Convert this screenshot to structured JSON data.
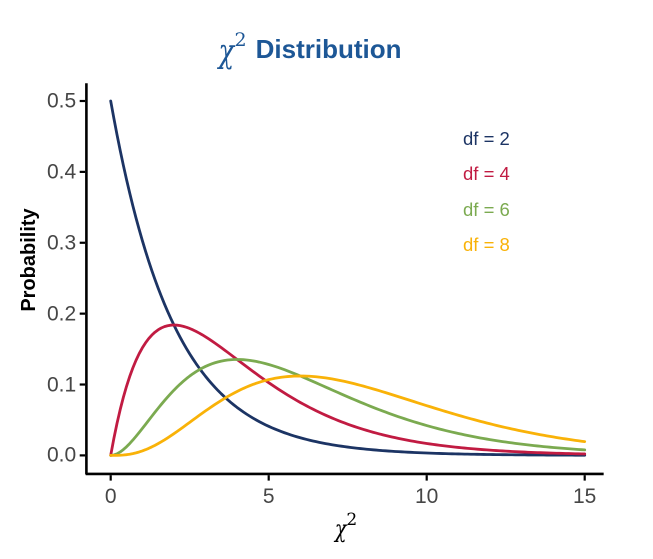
{
  "figure": {
    "title": {
      "symbol": "χ",
      "exponent": "2",
      "text": "Distribution",
      "color": "#1D5796"
    },
    "y_axis_title": "Probability",
    "x_axis_title": {
      "symbol": "χ",
      "exponent": "2"
    },
    "background": "#FFFFFF",
    "axis_color": "#000000",
    "tick_label_color": "#464646"
  },
  "legend": {
    "items": [
      {
        "label": "df = 2",
        "color": "#1C3464"
      },
      {
        "label": "df = 4",
        "color": "#C11B42"
      },
      {
        "label": "df = 6",
        "color": "#7BAA50"
      },
      {
        "label": "df = 8",
        "color": "#F9B208"
      }
    ]
  },
  "chart_data": {
    "type": "line",
    "title": "χ² Distribution",
    "xlabel": "χ²",
    "ylabel": "Probability",
    "xlim": [
      0,
      15
    ],
    "ylim": [
      0,
      0.5
    ],
    "grid": false,
    "legend_position": "inside-top-right",
    "xticks": {
      "values": [
        0,
        5,
        10,
        15
      ],
      "labels": [
        "0",
        "5",
        "10",
        "15"
      ]
    },
    "yticks": {
      "values": [
        0.0,
        0.1,
        0.2,
        0.3,
        0.4,
        0.5
      ],
      "labels": [
        "0.0",
        "0.1",
        "0.2",
        "0.3",
        "0.4",
        "0.5"
      ]
    },
    "x_start": 0.0,
    "x_step": 0.1,
    "series": [
      {
        "name": "df = 2",
        "df": 2,
        "color": "#1C3464",
        "y": [
          0.5,
          0.47561,
          0.45242,
          0.43035,
          0.40937,
          0.3894,
          0.37041,
          0.35234,
          0.33516,
          0.31881,
          0.30327,
          0.28847,
          0.27441,
          0.26102,
          0.24829,
          0.23618,
          0.22466,
          0.21371,
          0.20328,
          0.19337,
          0.18394,
          0.17497,
          0.16644,
          0.15832,
          0.1506,
          0.14325,
          0.13627,
          0.12962,
          0.1233,
          0.11729,
          0.11157,
          0.10612,
          0.10095,
          0.09602,
          0.09134,
          0.08689,
          0.08265,
          0.07862,
          0.07478,
          0.07114,
          0.06767,
          0.06437,
          0.06123,
          0.05824,
          0.0554,
          0.0527,
          0.05013,
          0.04768,
          0.04536,
          0.04315,
          0.04104,
          0.03904,
          0.03714,
          0.03533,
          0.0336,
          0.03196,
          0.03041,
          0.02892,
          0.02751,
          0.02617,
          0.02489,
          0.02368,
          0.02252,
          0.02143,
          0.02038,
          0.01939,
          0.01844,
          0.01754,
          0.01669,
          0.01587,
          0.0151,
          0.01436,
          0.01366,
          0.013,
          0.01236,
          0.01176,
          0.01119,
          0.01064,
          0.01012,
          0.00963,
          0.00916,
          0.00871,
          0.00829,
          0.00788,
          0.0075,
          0.00713,
          0.00678,
          0.00645,
          0.00614,
          0.00584,
          0.00555,
          0.00528,
          0.00503,
          0.00478,
          0.00455,
          0.00433,
          0.00411,
          0.00391,
          0.00372,
          0.00354,
          0.00337,
          0.0032,
          0.00305,
          0.0029,
          0.00276,
          0.00262,
          0.0025,
          0.00237,
          0.00226,
          0.00215,
          0.00204,
          0.00194,
          0.00185,
          0.00176,
          0.00167,
          0.00159,
          0.00151,
          0.00144,
          0.00137,
          0.0013,
          0.00124,
          0.00118,
          0.00112,
          0.00107,
          0.00101,
          0.00097,
          0.00092,
          0.00087,
          0.00083,
          0.00079,
          0.00075,
          0.00072,
          0.00068,
          0.00065,
          0.00062,
          0.00059,
          0.00056,
          0.00053,
          0.0005,
          0.00048,
          0.00046,
          0.00043,
          0.00041,
          0.00039,
          0.00037,
          0.00036,
          0.00034,
          0.00032,
          0.00031,
          0.00029,
          0.00028
        ]
      },
      {
        "name": "df = 4",
        "df": 4,
        "color": "#C11B42",
        "y": [
          0.0,
          0.02378,
          0.04524,
          0.06455,
          0.08187,
          0.09735,
          0.11112,
          0.12332,
          0.13406,
          0.14347,
          0.15163,
          0.15866,
          0.16464,
          0.16966,
          0.1738,
          0.17714,
          0.17973,
          0.18165,
          0.18296,
          0.1837,
          0.18394,
          0.18372,
          0.18308,
          0.18207,
          0.18072,
          0.17907,
          0.17715,
          0.17499,
          0.17262,
          0.17006,
          0.16735,
          0.16449,
          0.16152,
          0.15844,
          0.15528,
          0.15205,
          0.14877,
          0.14544,
          0.14209,
          0.13872,
          0.13534,
          0.13195,
          0.12858,
          0.12522,
          0.12188,
          0.11857,
          0.1153,
          0.11206,
          0.10886,
          0.10571,
          0.10261,
          0.09955,
          0.09656,
          0.09361,
          0.09073,
          0.0879,
          0.08513,
          0.08243,
          0.07978,
          0.0772,
          0.07468,
          0.07222,
          0.06983,
          0.06749,
          0.06522,
          0.06301,
          0.06086,
          0.05877,
          0.05673,
          0.05476,
          0.05285,
          0.05099,
          0.04918,
          0.04743,
          0.04574,
          0.0441,
          0.0425,
          0.04096,
          0.03947,
          0.03803,
          0.03663,
          0.03528,
          0.03397,
          0.03271,
          0.03149,
          0.03031,
          0.02917,
          0.02807,
          0.02701,
          0.02598,
          0.025,
          0.02404,
          0.02312,
          0.02223,
          0.02137,
          0.02055,
          0.01975,
          0.01898,
          0.01824,
          0.01753,
          0.01684,
          0.01618,
          0.01555,
          0.01493,
          0.01434,
          0.01377,
          0.01323,
          0.0127,
          0.01219,
          0.01171,
          0.01124,
          0.01079,
          0.01035,
          0.00994,
          0.00954,
          0.00915,
          0.00878,
          0.00842,
          0.00808,
          0.00775,
          0.00744,
          0.00713,
          0.00684,
          0.00656,
          0.00629,
          0.00603,
          0.00578,
          0.00555,
          0.00532,
          0.0051,
          0.00489,
          0.00468,
          0.00449,
          0.0043,
          0.00412,
          0.00395,
          0.00379,
          0.00363,
          0.00348,
          0.00333,
          0.00319,
          0.00306,
          0.00293,
          0.00281,
          0.00269,
          0.00257,
          0.00247,
          0.00236,
          0.00226,
          0.00217,
          0.00207
        ]
      },
      {
        "name": "df = 6",
        "df": 6,
        "color": "#7BAA50",
        "y": [
          0.0,
          0.00059,
          0.00226,
          0.00484,
          0.00819,
          0.01217,
          0.01667,
          0.02158,
          0.02681,
          0.03228,
          0.03791,
          0.04363,
          0.04939,
          0.05514,
          0.06083,
          0.06643,
          0.07189,
          0.0772,
          0.08233,
          0.08726,
          0.09197,
          0.09645,
          0.10069,
          0.10469,
          0.10843,
          0.11192,
          0.11514,
          0.11812,
          0.12083,
          0.1233,
          0.12551,
          0.12748,
          0.12921,
          0.13071,
          0.13199,
          0.13305,
          0.13389,
          0.13454,
          0.13499,
          0.13525,
          0.13534,
          0.13525,
          0.13501,
          0.13461,
          0.13407,
          0.1334,
          0.13259,
          0.13167,
          0.13063,
          0.12949,
          0.12826,
          0.12693,
          0.12552,
          0.12404,
          0.12248,
          0.12086,
          0.11919,
          0.11746,
          0.11569,
          0.11387,
          0.11202,
          0.11014,
          0.10823,
          0.1063,
          0.10435,
          0.10239,
          0.10041,
          0.09843,
          0.09645,
          0.09446,
          0.09248,
          0.0905,
          0.08853,
          0.08657,
          0.08462,
          0.08268,
          0.08076,
          0.07885,
          0.07697,
          0.07511,
          0.07326,
          0.07144,
          0.06965,
          0.06788,
          0.06613,
          0.06441,
          0.06272,
          0.06106,
          0.05942,
          0.05782,
          0.05624,
          0.05469,
          0.05317,
          0.05169,
          0.05023,
          0.0488,
          0.0474,
          0.04604,
          0.0447,
          0.04339,
          0.04211,
          0.04086,
          0.03964,
          0.03845,
          0.03729,
          0.03616,
          0.03505,
          0.03398,
          0.03293,
          0.0319,
          0.03091,
          0.02994,
          0.02899,
          0.02807,
          0.02718,
          0.02631,
          0.02546,
          0.02464,
          0.02384,
          0.02306,
          0.02231,
          0.02158,
          0.02086,
          0.02017,
          0.0195,
          0.01885,
          0.01822,
          0.01761,
          0.01701,
          0.01644,
          0.01588,
          0.01534,
          0.01481,
          0.01431,
          0.01381,
          0.01334,
          0.01288,
          0.01243,
          0.012,
          0.01158,
          0.01117,
          0.01078,
          0.0104,
          0.01003,
          0.00968,
          0.00933,
          0.009,
          0.00868,
          0.00837,
          0.00807,
          0.00778
        ]
      },
      {
        "name": "df = 8",
        "df": 8,
        "color": "#F9B208",
        "y": [
          0.0,
          1e-05,
          8e-05,
          0.00024,
          0.00055,
          0.00101,
          0.00167,
          0.00252,
          0.00358,
          0.00484,
          0.00632,
          0.008,
          0.00988,
          0.01195,
          0.01419,
          0.01661,
          0.01917,
          0.02187,
          0.0247,
          0.02763,
          0.03066,
          0.03376,
          0.03692,
          0.04013,
          0.04337,
          0.04663,
          0.0499,
          0.05315,
          0.05639,
          0.05959,
          0.06276,
          0.06587,
          0.06891,
          0.07189,
          0.07479,
          0.07761,
          0.08034,
          0.08296,
          0.08549,
          0.08791,
          0.09022,
          0.09242,
          0.09451,
          0.09647,
          0.09832,
          0.10005,
          0.10165,
          0.10314,
          0.10451,
          0.10575,
          0.10688,
          0.10789,
          0.10879,
          0.10957,
          0.11023,
          0.11079,
          0.11124,
          0.11159,
          0.11183,
          0.11197,
          0.11202,
          0.11197,
          0.11184,
          0.11162,
          0.11131,
          0.11092,
          0.11046,
          0.10992,
          0.10931,
          0.10863,
          0.10789,
          0.10709,
          0.10623,
          0.10532,
          0.10436,
          0.10335,
          0.10229,
          0.1012,
          0.10006,
          0.09889,
          0.09768,
          0.09645,
          0.09518,
          0.09389,
          0.09258,
          0.09125,
          0.0899,
          0.08853,
          0.08715,
          0.08576,
          0.08436,
          0.08295,
          0.08153,
          0.08011,
          0.07869,
          0.07727,
          0.07585,
          0.07442,
          0.07301,
          0.07159,
          0.07019,
          0.06879,
          0.06739,
          0.06601,
          0.06464,
          0.06328,
          0.06193,
          0.06059,
          0.05927,
          0.05796,
          0.05666,
          0.05538,
          0.05412,
          0.05287,
          0.05164,
          0.05042,
          0.04923,
          0.04805,
          0.04689,
          0.04574,
          0.04462,
          0.04351,
          0.04242,
          0.04136,
          0.04031,
          0.03928,
          0.03826,
          0.03727,
          0.0363,
          0.03534,
          0.03441,
          0.03349,
          0.03259,
          0.03171,
          0.03085,
          0.03001,
          0.02918,
          0.02838,
          0.02759,
          0.02682,
          0.02606,
          0.02533,
          0.02461,
          0.02391,
          0.02322,
          0.02255,
          0.0219,
          0.02126,
          0.02064,
          0.02004,
          0.01944
        ]
      }
    ]
  }
}
